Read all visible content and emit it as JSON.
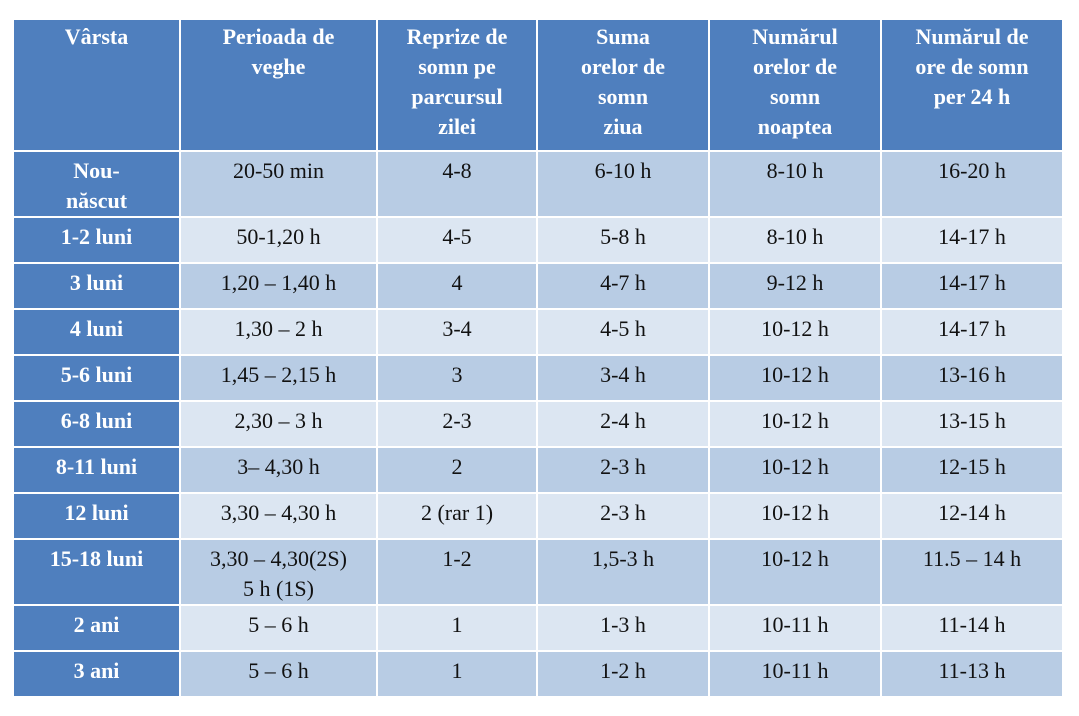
{
  "colors": {
    "header_bg": "#4f7fbe",
    "header_text": "#ffffff",
    "row_odd": "#b8cce4",
    "row_even": "#dce6f2",
    "cell_text": "#111111"
  },
  "table": {
    "headers": [
      [
        "Vârsta"
      ],
      [
        "Perioada de",
        "veghe"
      ],
      [
        "Reprize de",
        "somn pe",
        "parcursul",
        "zilei"
      ],
      [
        "Suma",
        "orelor de",
        "somn",
        "ziua"
      ],
      [
        "Numărul",
        "orelor de",
        "somn",
        "noaptea"
      ],
      [
        "Numărul de",
        "ore de somn",
        "per 24 h"
      ]
    ],
    "rows": [
      {
        "age": [
          "Nou-",
          "născut"
        ],
        "wake": [
          "20-50 min"
        ],
        "naps": "4-8",
        "day": "6-10 h",
        "night": "8-10 h",
        "total": "16-20 h"
      },
      {
        "age": [
          "1-2 luni"
        ],
        "wake": [
          "50-1,20 h"
        ],
        "naps": "4-5",
        "day": "5-8 h",
        "night": "8-10 h",
        "total": "14-17 h"
      },
      {
        "age": [
          "3 luni"
        ],
        "wake": [
          "1,20 – 1,40 h"
        ],
        "naps": "4",
        "day": "4-7 h",
        "night": "9-12 h",
        "total": "14-17 h"
      },
      {
        "age": [
          "4 luni"
        ],
        "wake": [
          "1,30 – 2 h"
        ],
        "naps": "3-4",
        "day": "4-5 h",
        "night": "10-12 h",
        "total": "14-17 h"
      },
      {
        "age": [
          "5-6 luni"
        ],
        "wake": [
          "1,45 – 2,15 h"
        ],
        "naps": "3",
        "day": "3-4 h",
        "night": "10-12 h",
        "total": "13-16 h"
      },
      {
        "age": [
          "6-8 luni"
        ],
        "wake": [
          "2,30 – 3 h"
        ],
        "naps": "2-3",
        "day": "2-4 h",
        "night": "10-12 h",
        "total": "13-15 h"
      },
      {
        "age": [
          "8-11 luni"
        ],
        "wake": [
          "3– 4,30 h"
        ],
        "naps": "2",
        "day": "2-3 h",
        "night": "10-12 h",
        "total": "12-15 h"
      },
      {
        "age": [
          "12 luni"
        ],
        "wake": [
          "3,30 – 4,30 h"
        ],
        "naps": "2 (rar 1)",
        "day": "2-3 h",
        "night": "10-12 h",
        "total": "12-14 h"
      },
      {
        "age": [
          "15-18 luni"
        ],
        "wake": [
          "3,30 – 4,30(2S)",
          "5 h (1S)"
        ],
        "naps": "1-2",
        "day": "1,5-3 h",
        "night": "10-12 h",
        "total": "11.5 – 14 h"
      },
      {
        "age": [
          "2 ani"
        ],
        "wake": [
          "5 – 6 h"
        ],
        "naps": "1",
        "day": "1-3 h",
        "night": "10-11 h",
        "total": "11-14 h"
      },
      {
        "age": [
          "3 ani"
        ],
        "wake": [
          "5 – 6 h"
        ],
        "naps": "1",
        "day": "1-2 h",
        "night": "10-11 h",
        "total": "11-13 h"
      }
    ]
  }
}
